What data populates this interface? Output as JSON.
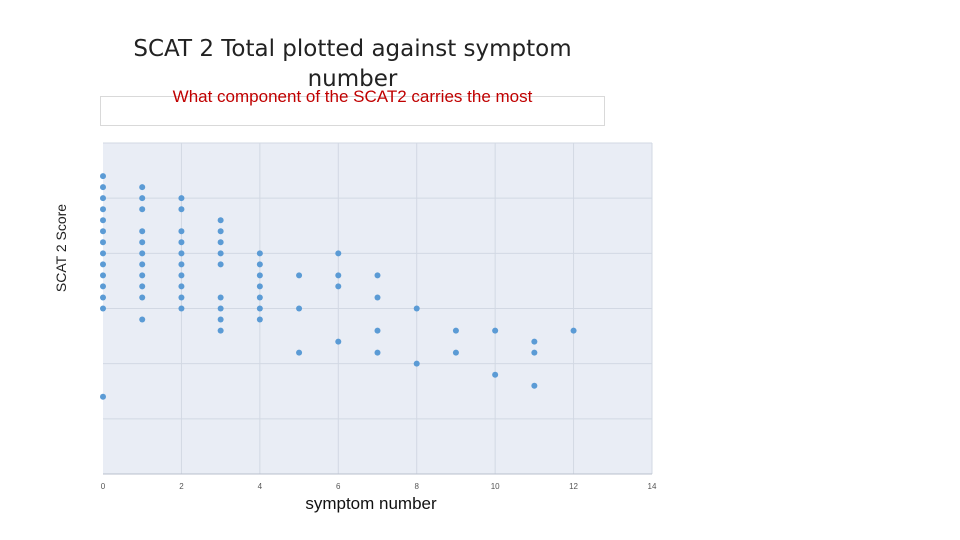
{
  "chart_data": {
    "type": "scatter",
    "title": "SCAT  2 Total plotted against symptom number",
    "subtitle": "What component of the SCAT2 carries the most",
    "xlabel": "symptom number",
    "ylabel": "SCAT 2 Score",
    "xlim": [
      0,
      14
    ],
    "xticks": [
      "0",
      "2",
      "4",
      "6",
      "8",
      "10",
      "12",
      "14"
    ],
    "ylim": [
      55,
      85
    ],
    "grid": true,
    "colors": {
      "point": "#5b9bd5",
      "plot_bg": "#e9edf5",
      "grid": "#d2d8e3",
      "subtitle": "#c00000"
    },
    "points": [
      {
        "x": 0,
        "y": 82
      },
      {
        "x": 0,
        "y": 81
      },
      {
        "x": 0,
        "y": 80
      },
      {
        "x": 0,
        "y": 79
      },
      {
        "x": 0,
        "y": 78
      },
      {
        "x": 0,
        "y": 77
      },
      {
        "x": 0,
        "y": 76
      },
      {
        "x": 0,
        "y": 75
      },
      {
        "x": 0,
        "y": 74
      },
      {
        "x": 0,
        "y": 73
      },
      {
        "x": 0,
        "y": 72
      },
      {
        "x": 0,
        "y": 71
      },
      {
        "x": 0,
        "y": 70
      },
      {
        "x": 0,
        "y": 62
      },
      {
        "x": 1,
        "y": 81
      },
      {
        "x": 1,
        "y": 80
      },
      {
        "x": 1,
        "y": 79
      },
      {
        "x": 1,
        "y": 77
      },
      {
        "x": 1,
        "y": 76
      },
      {
        "x": 1,
        "y": 75
      },
      {
        "x": 1,
        "y": 74
      },
      {
        "x": 1,
        "y": 73
      },
      {
        "x": 1,
        "y": 72
      },
      {
        "x": 1,
        "y": 71
      },
      {
        "x": 1,
        "y": 69
      },
      {
        "x": 2,
        "y": 80
      },
      {
        "x": 2,
        "y": 79
      },
      {
        "x": 2,
        "y": 77
      },
      {
        "x": 2,
        "y": 76
      },
      {
        "x": 2,
        "y": 75
      },
      {
        "x": 2,
        "y": 74
      },
      {
        "x": 2,
        "y": 73
      },
      {
        "x": 2,
        "y": 72
      },
      {
        "x": 2,
        "y": 71
      },
      {
        "x": 2,
        "y": 70
      },
      {
        "x": 3,
        "y": 78
      },
      {
        "x": 3,
        "y": 77
      },
      {
        "x": 3,
        "y": 76
      },
      {
        "x": 3,
        "y": 75
      },
      {
        "x": 3,
        "y": 74
      },
      {
        "x": 3,
        "y": 71
      },
      {
        "x": 3,
        "y": 70
      },
      {
        "x": 3,
        "y": 69
      },
      {
        "x": 3,
        "y": 68
      },
      {
        "x": 4,
        "y": 75
      },
      {
        "x": 4,
        "y": 74
      },
      {
        "x": 4,
        "y": 73
      },
      {
        "x": 4,
        "y": 72
      },
      {
        "x": 4,
        "y": 71
      },
      {
        "x": 4,
        "y": 70
      },
      {
        "x": 4,
        "y": 69
      },
      {
        "x": 5,
        "y": 73
      },
      {
        "x": 5,
        "y": 70
      },
      {
        "x": 5,
        "y": 66
      },
      {
        "x": 6,
        "y": 75
      },
      {
        "x": 6,
        "y": 73
      },
      {
        "x": 6,
        "y": 72
      },
      {
        "x": 6,
        "y": 67
      },
      {
        "x": 7,
        "y": 73
      },
      {
        "x": 7,
        "y": 71
      },
      {
        "x": 7,
        "y": 68
      },
      {
        "x": 7,
        "y": 66
      },
      {
        "x": 8,
        "y": 70
      },
      {
        "x": 8,
        "y": 65
      },
      {
        "x": 9,
        "y": 68
      },
      {
        "x": 9,
        "y": 66
      },
      {
        "x": 10,
        "y": 68
      },
      {
        "x": 10,
        "y": 64
      },
      {
        "x": 11,
        "y": 67
      },
      {
        "x": 11,
        "y": 66
      },
      {
        "x": 11,
        "y": 63
      },
      {
        "x": 12,
        "y": 68
      }
    ]
  }
}
